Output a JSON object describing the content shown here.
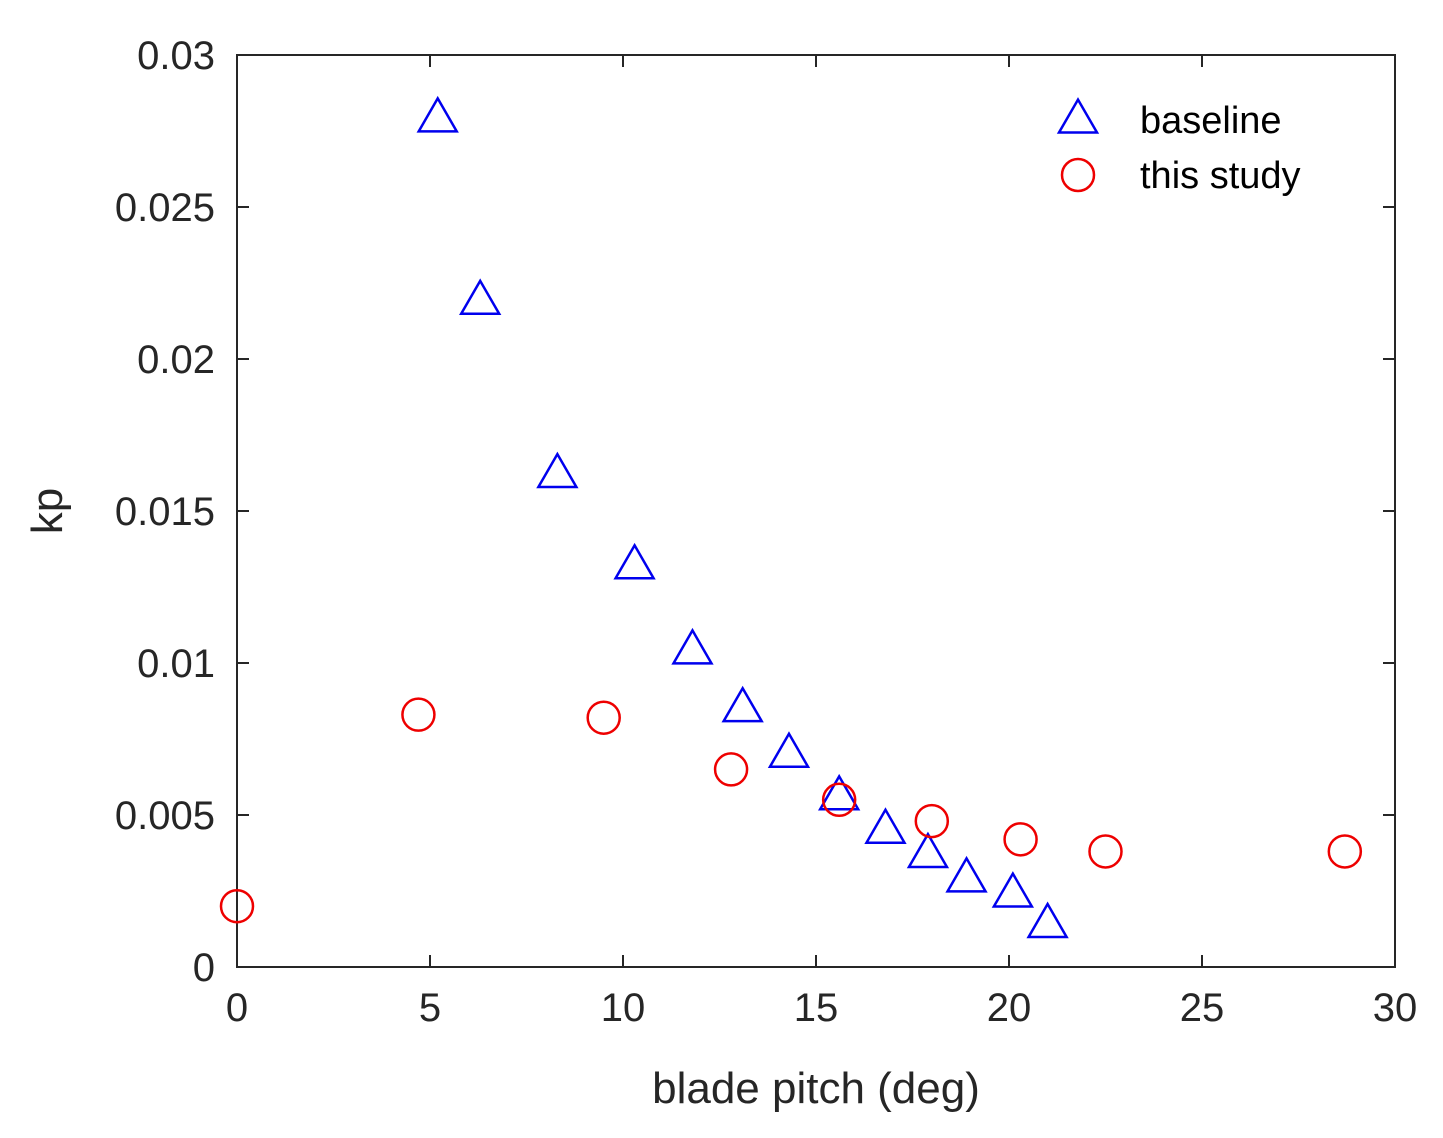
{
  "chart_data": {
    "type": "scatter",
    "title": "",
    "xlabel": "blade pitch (deg)",
    "ylabel": "kp",
    "xlim": [
      0,
      30
    ],
    "ylim": [
      0,
      0.03
    ],
    "xticks": [
      "0",
      "5",
      "10",
      "15",
      "20",
      "25",
      "30"
    ],
    "yticks": [
      "0",
      "0.005",
      "0.01",
      "0.015",
      "0.02",
      "0.025",
      "0.03"
    ],
    "grid": false,
    "legend_position": "top-right",
    "series": [
      {
        "name": "baseline",
        "marker": "triangle",
        "color": "#0000ee",
        "points": [
          {
            "x": 5.2,
            "y": 0.0279
          },
          {
            "x": 6.3,
            "y": 0.0219
          },
          {
            "x": 8.3,
            "y": 0.0162
          },
          {
            "x": 10.3,
            "y": 0.0132
          },
          {
            "x": 11.8,
            "y": 0.0104
          },
          {
            "x": 13.1,
            "y": 0.0085
          },
          {
            "x": 14.3,
            "y": 0.007
          },
          {
            "x": 15.6,
            "y": 0.0056
          },
          {
            "x": 16.8,
            "y": 0.0045
          },
          {
            "x": 17.9,
            "y": 0.0037
          },
          {
            "x": 18.9,
            "y": 0.0029
          },
          {
            "x": 20.1,
            "y": 0.0024
          },
          {
            "x": 21.0,
            "y": 0.0014
          }
        ]
      },
      {
        "name": "this study",
        "marker": "circle",
        "color": "#ee0000",
        "points": [
          {
            "x": 0.0,
            "y": 0.002
          },
          {
            "x": 4.7,
            "y": 0.0083
          },
          {
            "x": 9.5,
            "y": 0.0082
          },
          {
            "x": 12.8,
            "y": 0.0065
          },
          {
            "x": 15.6,
            "y": 0.0055
          },
          {
            "x": 18.0,
            "y": 0.0048
          },
          {
            "x": 20.3,
            "y": 0.0042
          },
          {
            "x": 22.5,
            "y": 0.0038
          },
          {
            "x": 28.7,
            "y": 0.0038
          }
        ]
      }
    ]
  }
}
